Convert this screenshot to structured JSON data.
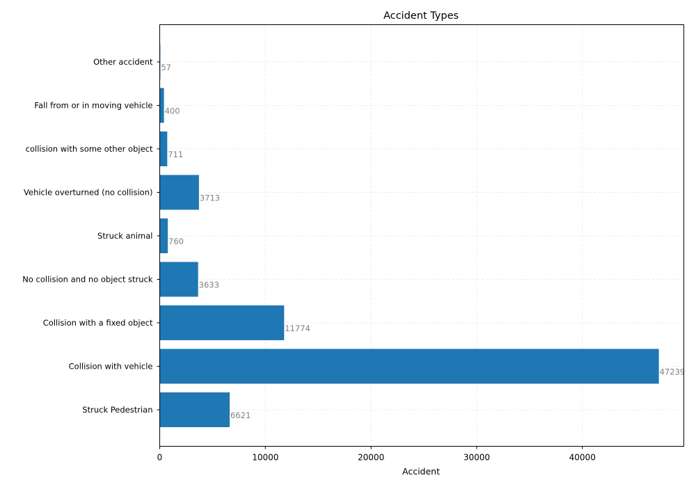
{
  "chart_data": {
    "type": "bar",
    "orientation": "horizontal",
    "title": "Accident Types",
    "xlabel": "Accident",
    "ylabel": "",
    "categories": [
      "Struck Pedestrian",
      "Collision with vehicle",
      "Collision with a fixed object",
      "No collision and no object struck",
      "Struck animal",
      "Vehicle overturned (no collision)",
      "collision with some other object",
      "Fall from or in moving vehicle",
      "Other accident"
    ],
    "values": [
      6621,
      47239,
      11774,
      3633,
      760,
      3713,
      711,
      400,
      57
    ],
    "data_labels": [
      "6621",
      "47239",
      "11774",
      "3633",
      "760",
      "3713",
      "711",
      "400",
      "57"
    ],
    "xlim": [
      0,
      49600
    ],
    "xticks": [
      0,
      10000,
      20000,
      30000,
      40000
    ],
    "xtick_labels": [
      "0",
      "10000",
      "20000",
      "30000",
      "40000"
    ],
    "grid": true,
    "legend": "none",
    "colors": {
      "bar": "#1f77b4",
      "data_label": "#808080",
      "grid": "#e6e6e6",
      "axis": "#000000"
    }
  }
}
